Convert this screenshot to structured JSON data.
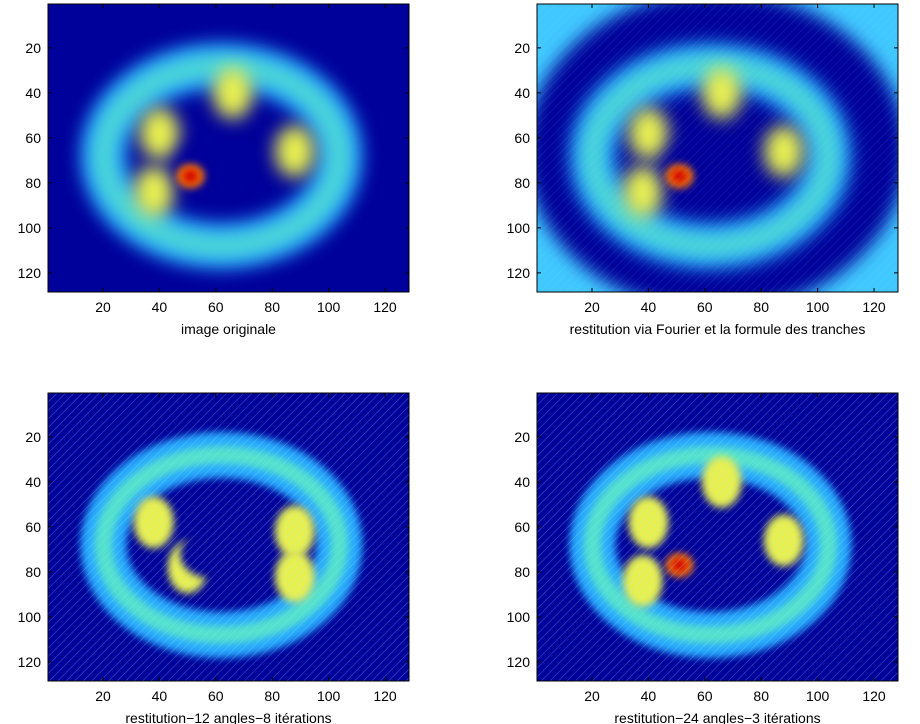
{
  "chart_data": [
    {
      "type": "image",
      "xlabel": "image originale",
      "xlim": [
        0.5,
        128.5
      ],
      "ylim": [
        0.5,
        128.5
      ],
      "y_reversed": true,
      "xticks": [
        20,
        40,
        60,
        80,
        100,
        120
      ],
      "yticks": [
        20,
        40,
        60,
        80,
        100,
        120
      ]
    },
    {
      "type": "image",
      "xlabel": "restitution via Fourier et la formule des tranches",
      "xlim": [
        0.5,
        128.5
      ],
      "ylim": [
        0.5,
        128.5
      ],
      "y_reversed": true,
      "xticks": [
        20,
        40,
        60,
        80,
        100,
        120
      ],
      "yticks": [
        20,
        40,
        60,
        80,
        100,
        120
      ]
    },
    {
      "type": "image",
      "xlabel": "restitution−12 angles−8 itérations",
      "xlim": [
        0.5,
        128.5
      ],
      "ylim": [
        0.5,
        128.5
      ],
      "y_reversed": true,
      "xticks": [
        20,
        40,
        60,
        80,
        100,
        120
      ],
      "yticks": [
        20,
        40,
        60,
        80,
        100,
        120
      ]
    },
    {
      "type": "image",
      "xlabel": "restitution−24 angles−3 itérations",
      "xlim": [
        0.5,
        128.5
      ],
      "ylim": [
        0.5,
        128.5
      ],
      "y_reversed": true,
      "xticks": [
        20,
        40,
        60,
        80,
        100,
        120
      ],
      "yticks": [
        20,
        40,
        60,
        80,
        100,
        120
      ]
    }
  ]
}
